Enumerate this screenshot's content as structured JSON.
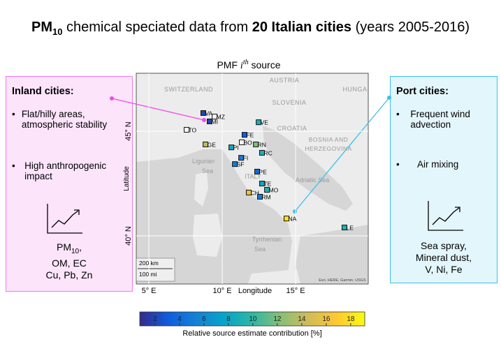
{
  "title": {
    "pm": "PM",
    "sub": "10",
    "t1": " chemical speciated data from ",
    "bold": "20 Italian cities",
    "t2": " (years 2005-2016)"
  },
  "inland": {
    "heading": "Inland cities:",
    "bullets": [
      "Flat/hilly areas, atmospheric stability",
      "High anthropogenic impact"
    ],
    "species": {
      "pm": "PM",
      "sub": "10",
      "comma": ",",
      "lines": [
        "OM, EC",
        "Cu, Pb, Zn"
      ]
    }
  },
  "port": {
    "heading": "Port cities:",
    "bullets": [
      "Frequent wind advection",
      "Air mixing"
    ],
    "species": [
      "Sea spray,",
      "Mineral dust,",
      "V, Ni, Fe"
    ]
  },
  "chart_data": {
    "type": "scatter",
    "title": {
      "pre": "PMF ",
      "i": "i",
      "sup": "th",
      "post": " source"
    },
    "xlabel": "Longitude",
    "ylabel": "Latitude",
    "xlim": [
      4.14,
      19.95
    ],
    "ylim": [
      37.7,
      47.77
    ],
    "xticks": [
      {
        "value": 5,
        "label": "5° E"
      },
      {
        "value": 10,
        "label": "10° E"
      },
      {
        "value": 15,
        "label": "15° E"
      }
    ],
    "yticks": [
      {
        "value": 40,
        "label": "40° N"
      },
      {
        "value": 45,
        "label": "45° N"
      }
    ],
    "grid": true,
    "categories": [
      "VA",
      "MZ",
      "MI",
      "TO",
      "VE",
      "FE",
      "BO",
      "RN",
      "GE",
      "PI",
      "RC",
      "FI",
      "SF",
      "PE",
      "TE",
      "MO",
      "CH",
      "RM",
      "NA",
      "LE"
    ],
    "x": [
      8.71,
      9.48,
      9.14,
      7.57,
      12.48,
      11.52,
      11.33,
      12.29,
      8.86,
      10.62,
      12.71,
      11.29,
      10.86,
      12.38,
      12.71,
      13.05,
      11.81,
      12.57,
      14.38,
      18.33
    ],
    "y": [
      45.87,
      45.7,
      45.47,
      45.07,
      45.43,
      44.83,
      44.47,
      44.37,
      44.37,
      44.23,
      43.97,
      43.73,
      43.43,
      43.07,
      42.5,
      42.2,
      42.07,
      41.87,
      40.83,
      40.4
    ],
    "values": [
      2,
      null,
      2,
      null,
      9,
      3,
      null,
      12,
      14,
      8,
      9,
      5,
      5,
      4,
      8,
      9,
      16,
      5,
      18,
      9
    ],
    "colormap": [
      "#352a87",
      "#0f5cdd",
      "#1481d6",
      "#06a4ca",
      "#2eb7a4",
      "#87bf77",
      "#d1bb59",
      "#fec832",
      "#f9fb0e"
    ],
    "colorbar": {
      "label": "Relative source estimate contribution [%]",
      "lim": [
        0.75,
        19.15
      ],
      "ticks": [
        2,
        4,
        6,
        8,
        10,
        12,
        14,
        16,
        18
      ]
    },
    "map_labels": [
      "SWITZERLAND",
      "AUSTRIA",
      "HUNGA",
      "SLOVENIA",
      "CROATIA",
      "BOSNIA AND",
      "HERZEGOVINA",
      "Ligurian",
      "Sea",
      "ITALY",
      "Adriatic Sea",
      "Tyrrhenian",
      "Sea",
      "Esri, HERE, Garmin, USGS"
    ],
    "scale": [
      "200 km",
      "100 mi"
    ]
  }
}
